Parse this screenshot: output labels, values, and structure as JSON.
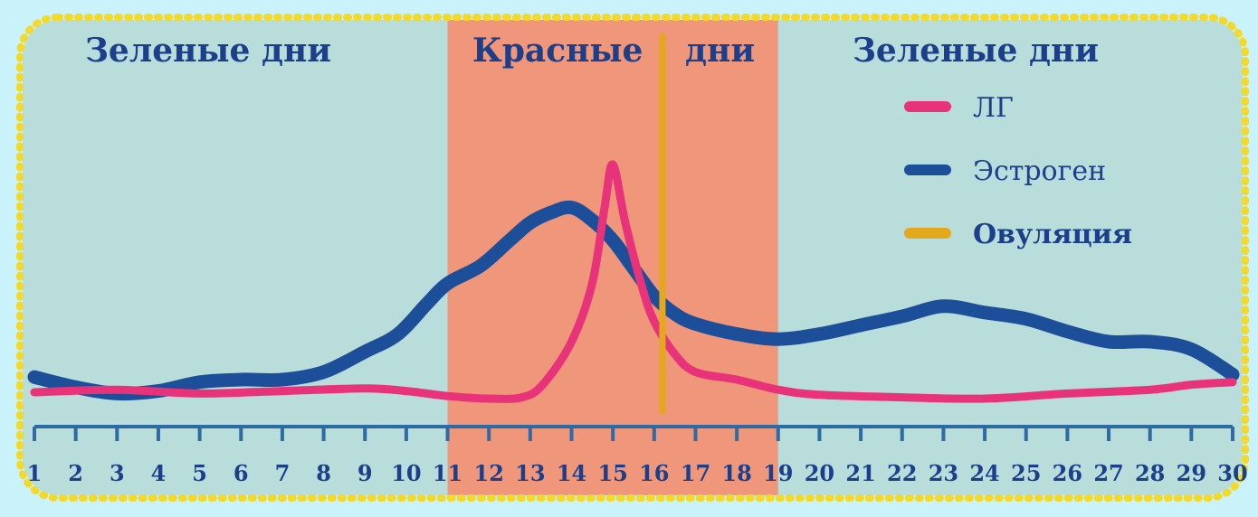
{
  "header": {
    "left_title": "Зеленые дни",
    "center_title": "Красные дни",
    "right_title": "Зеленые дни"
  },
  "legend": {
    "items": [
      {
        "label": "ЛГ",
        "color": "#e8337a"
      },
      {
        "label": "Эстроген",
        "color": "#1c4e9a"
      },
      {
        "label": "Овуляция",
        "color": "#e3a81c"
      }
    ],
    "placement": "top-right"
  },
  "colors": {
    "page_background": "#c9f2fb",
    "panel_background": "#b8ddda",
    "panel_border": "#f3d92a",
    "red_zone": "#f0967a",
    "axis": "#2e6ba5",
    "title_text": "#1c3f8c"
  },
  "chart_data": {
    "type": "line",
    "x_ticks": [
      "1",
      "2",
      "3",
      "4",
      "5",
      "6",
      "7",
      "8",
      "9",
      "10",
      "11",
      "12",
      "13",
      "14",
      "15",
      "16",
      "17",
      "18",
      "19",
      "20",
      "21",
      "22",
      "23",
      "24",
      "25",
      "26",
      "27",
      "28",
      "29",
      "30"
    ],
    "xlim": [
      1,
      30
    ],
    "ylim": [
      0,
      100
    ],
    "red_zone_days": [
      11,
      19
    ],
    "ovulation_day": 16.2,
    "series": [
      {
        "name": "ЛГ",
        "color": "#e8337a",
        "x": [
          1,
          3,
          5,
          7,
          9,
          10,
          11,
          12,
          12.8,
          13.3,
          14,
          14.5,
          14.8,
          15,
          15.3,
          15.7,
          16,
          16.5,
          17,
          18,
          19,
          20,
          22,
          24,
          26,
          28,
          29,
          30
        ],
        "y": [
          5,
          6,
          4.5,
          5.5,
          6.5,
          5.5,
          3.5,
          2.5,
          3,
          8,
          25,
          48,
          78,
          95,
          72,
          47,
          33,
          20,
          13,
          10,
          6,
          4,
          3,
          2.5,
          4.5,
          6,
          8,
          9
        ]
      },
      {
        "name": "Эстроген",
        "color": "#1c4e9a",
        "x": [
          1,
          2,
          3,
          4,
          5,
          6,
          7,
          8,
          9,
          9.8,
          10.5,
          11,
          11.8,
          12.5,
          13,
          13.5,
          14,
          14.5,
          15,
          15.5,
          16,
          16.5,
          17,
          18,
          19,
          20,
          21,
          22,
          23,
          24,
          25,
          26,
          27,
          28,
          29,
          30
        ],
        "y": [
          11,
          7,
          4.5,
          5.5,
          9,
          10,
          10,
          13,
          21,
          28,
          40,
          48,
          55,
          65,
          72,
          76,
          78,
          73,
          65,
          54,
          43,
          36,
          32,
          28,
          26,
          28,
          31.5,
          35,
          39,
          36.5,
          34,
          29,
          25,
          25,
          22,
          12
        ]
      }
    ]
  }
}
